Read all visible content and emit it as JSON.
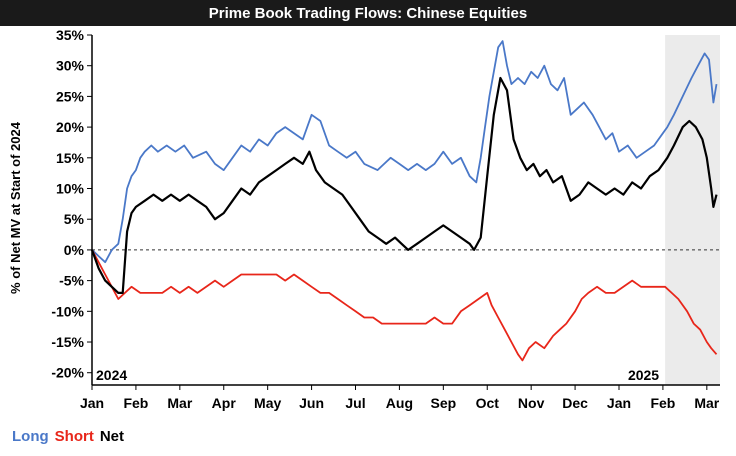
{
  "chart_data": {
    "type": "line",
    "title": "Prime Book Trading Flows: Chinese Equities",
    "ylabel": "% of Net MV at Start of 2024",
    "xlabel": "",
    "ylim": [
      -22,
      35
    ],
    "yticks": [
      -20,
      -15,
      -10,
      -5,
      0,
      5,
      10,
      15,
      20,
      25,
      30,
      35
    ],
    "ytick_labels": [
      "-20%",
      "-15%",
      "-10%",
      "-5%",
      "0%",
      "5%",
      "10%",
      "15%",
      "20%",
      "25%",
      "30%",
      "35%"
    ],
    "x_unit": "months since Jan 2024",
    "xlim": [
      0,
      14.3
    ],
    "xticks": [
      0,
      1,
      2,
      3,
      4,
      5,
      6,
      7,
      8,
      9,
      10,
      11,
      12,
      13,
      14
    ],
    "xtick_labels": [
      "Jan",
      "Feb",
      "Mar",
      "Apr",
      "May",
      "Jun",
      "Jul",
      "Aug",
      "Sep",
      "Oct",
      "Nov",
      "Dec",
      "Jan",
      "Feb",
      "Mar"
    ],
    "year_labels": [
      "2024",
      "2025"
    ],
    "shaded_region": [
      13.05,
      14.3
    ],
    "zero_line": "dashed",
    "legend": {
      "position": "bottom-left",
      "entries": [
        "Long",
        "Short",
        "Net"
      ]
    },
    "series": [
      {
        "name": "Long",
        "color": "#4a78c8",
        "points": [
          [
            0,
            0
          ],
          [
            0.15,
            -1
          ],
          [
            0.3,
            -2
          ],
          [
            0.45,
            0
          ],
          [
            0.6,
            1
          ],
          [
            0.7,
            5
          ],
          [
            0.8,
            10
          ],
          [
            0.9,
            12
          ],
          [
            1.0,
            13
          ],
          [
            1.1,
            15
          ],
          [
            1.2,
            16
          ],
          [
            1.35,
            17
          ],
          [
            1.5,
            16
          ],
          [
            1.7,
            17
          ],
          [
            1.9,
            16
          ],
          [
            2.1,
            17
          ],
          [
            2.3,
            15
          ],
          [
            2.6,
            16
          ],
          [
            2.8,
            14
          ],
          [
            3.0,
            13
          ],
          [
            3.2,
            15
          ],
          [
            3.4,
            17
          ],
          [
            3.6,
            16
          ],
          [
            3.8,
            18
          ],
          [
            4.0,
            17
          ],
          [
            4.2,
            19
          ],
          [
            4.4,
            20
          ],
          [
            4.6,
            19
          ],
          [
            4.8,
            18
          ],
          [
            5.0,
            22
          ],
          [
            5.2,
            21
          ],
          [
            5.4,
            17
          ],
          [
            5.6,
            16
          ],
          [
            5.8,
            15
          ],
          [
            6.0,
            16
          ],
          [
            6.2,
            14
          ],
          [
            6.5,
            13
          ],
          [
            6.8,
            15
          ],
          [
            7.0,
            14
          ],
          [
            7.2,
            13
          ],
          [
            7.4,
            14
          ],
          [
            7.6,
            13
          ],
          [
            7.8,
            14
          ],
          [
            8.0,
            16
          ],
          [
            8.2,
            14
          ],
          [
            8.4,
            15
          ],
          [
            8.6,
            12
          ],
          [
            8.75,
            11
          ],
          [
            8.85,
            15
          ],
          [
            8.95,
            20
          ],
          [
            9.05,
            25
          ],
          [
            9.15,
            29
          ],
          [
            9.25,
            33
          ],
          [
            9.35,
            34
          ],
          [
            9.45,
            30
          ],
          [
            9.55,
            27
          ],
          [
            9.7,
            28
          ],
          [
            9.85,
            27
          ],
          [
            10.0,
            29
          ],
          [
            10.15,
            28
          ],
          [
            10.3,
            30
          ],
          [
            10.45,
            27
          ],
          [
            10.6,
            26
          ],
          [
            10.75,
            28
          ],
          [
            10.9,
            22
          ],
          [
            11.05,
            23
          ],
          [
            11.2,
            24
          ],
          [
            11.4,
            22
          ],
          [
            11.55,
            20
          ],
          [
            11.7,
            18
          ],
          [
            11.85,
            19
          ],
          [
            12.0,
            16
          ],
          [
            12.2,
            17
          ],
          [
            12.4,
            15
          ],
          [
            12.6,
            16
          ],
          [
            12.8,
            17
          ],
          [
            13.0,
            19
          ],
          [
            13.1,
            20
          ],
          [
            13.25,
            22
          ],
          [
            13.45,
            25
          ],
          [
            13.65,
            28
          ],
          [
            13.8,
            30
          ],
          [
            13.95,
            32
          ],
          [
            14.05,
            31
          ],
          [
            14.15,
            24
          ],
          [
            14.22,
            27
          ]
        ]
      },
      {
        "name": "Short",
        "color": "#e8261a",
        "points": [
          [
            0,
            0
          ],
          [
            0.15,
            -2
          ],
          [
            0.3,
            -4
          ],
          [
            0.45,
            -6
          ],
          [
            0.6,
            -8
          ],
          [
            0.75,
            -7
          ],
          [
            0.9,
            -6
          ],
          [
            1.1,
            -7
          ],
          [
            1.3,
            -7
          ],
          [
            1.6,
            -7
          ],
          [
            1.8,
            -6
          ],
          [
            2.0,
            -7
          ],
          [
            2.2,
            -6
          ],
          [
            2.4,
            -7
          ],
          [
            2.6,
            -6
          ],
          [
            2.8,
            -5
          ],
          [
            3.0,
            -6
          ],
          [
            3.2,
            -5
          ],
          [
            3.4,
            -4
          ],
          [
            3.6,
            -4
          ],
          [
            3.8,
            -4
          ],
          [
            4.0,
            -4
          ],
          [
            4.2,
            -4
          ],
          [
            4.4,
            -5
          ],
          [
            4.6,
            -4
          ],
          [
            4.8,
            -5
          ],
          [
            5.0,
            -6
          ],
          [
            5.2,
            -7
          ],
          [
            5.4,
            -7
          ],
          [
            5.6,
            -8
          ],
          [
            5.8,
            -9
          ],
          [
            6.0,
            -10
          ],
          [
            6.2,
            -11
          ],
          [
            6.4,
            -11
          ],
          [
            6.6,
            -12
          ],
          [
            6.8,
            -12
          ],
          [
            7.0,
            -12
          ],
          [
            7.2,
            -12
          ],
          [
            7.4,
            -12
          ],
          [
            7.6,
            -12
          ],
          [
            7.8,
            -11
          ],
          [
            8.0,
            -12
          ],
          [
            8.2,
            -12
          ],
          [
            8.4,
            -10
          ],
          [
            8.6,
            -9
          ],
          [
            8.8,
            -8
          ],
          [
            9.0,
            -7
          ],
          [
            9.1,
            -9
          ],
          [
            9.25,
            -11
          ],
          [
            9.4,
            -13
          ],
          [
            9.55,
            -15
          ],
          [
            9.7,
            -17
          ],
          [
            9.8,
            -18
          ],
          [
            9.95,
            -16
          ],
          [
            10.1,
            -15
          ],
          [
            10.3,
            -16
          ],
          [
            10.5,
            -14
          ],
          [
            10.65,
            -13
          ],
          [
            10.8,
            -12
          ],
          [
            11.0,
            -10
          ],
          [
            11.15,
            -8
          ],
          [
            11.3,
            -7
          ],
          [
            11.5,
            -6
          ],
          [
            11.7,
            -7
          ],
          [
            11.9,
            -7
          ],
          [
            12.1,
            -6
          ],
          [
            12.3,
            -5
          ],
          [
            12.5,
            -6
          ],
          [
            12.7,
            -6
          ],
          [
            12.9,
            -6
          ],
          [
            13.05,
            -6
          ],
          [
            13.2,
            -7
          ],
          [
            13.35,
            -8
          ],
          [
            13.55,
            -10
          ],
          [
            13.7,
            -12
          ],
          [
            13.85,
            -13
          ],
          [
            14.0,
            -15
          ],
          [
            14.1,
            -16
          ],
          [
            14.22,
            -17
          ]
        ]
      },
      {
        "name": "Net",
        "color": "#000000",
        "points": [
          [
            0,
            0
          ],
          [
            0.15,
            -3
          ],
          [
            0.3,
            -5
          ],
          [
            0.45,
            -6
          ],
          [
            0.6,
            -7
          ],
          [
            0.7,
            -7
          ],
          [
            0.8,
            3
          ],
          [
            0.9,
            6
          ],
          [
            1.0,
            7
          ],
          [
            1.2,
            8
          ],
          [
            1.4,
            9
          ],
          [
            1.6,
            8
          ],
          [
            1.8,
            9
          ],
          [
            2.0,
            8
          ],
          [
            2.2,
            9
          ],
          [
            2.4,
            8
          ],
          [
            2.6,
            7
          ],
          [
            2.8,
            5
          ],
          [
            3.0,
            6
          ],
          [
            3.2,
            8
          ],
          [
            3.4,
            10
          ],
          [
            3.6,
            9
          ],
          [
            3.8,
            11
          ],
          [
            4.0,
            12
          ],
          [
            4.2,
            13
          ],
          [
            4.4,
            14
          ],
          [
            4.6,
            15
          ],
          [
            4.8,
            14
          ],
          [
            4.95,
            16
          ],
          [
            5.1,
            13
          ],
          [
            5.3,
            11
          ],
          [
            5.5,
            10
          ],
          [
            5.7,
            9
          ],
          [
            5.9,
            7
          ],
          [
            6.1,
            5
          ],
          [
            6.3,
            3
          ],
          [
            6.5,
            2
          ],
          [
            6.7,
            1
          ],
          [
            6.9,
            2
          ],
          [
            7.05,
            1
          ],
          [
            7.2,
            0
          ],
          [
            7.4,
            1
          ],
          [
            7.6,
            2
          ],
          [
            7.8,
            3
          ],
          [
            8.0,
            4
          ],
          [
            8.2,
            3
          ],
          [
            8.4,
            2
          ],
          [
            8.6,
            1
          ],
          [
            8.7,
            0
          ],
          [
            8.85,
            2
          ],
          [
            9.0,
            12
          ],
          [
            9.15,
            22
          ],
          [
            9.3,
            28
          ],
          [
            9.45,
            26
          ],
          [
            9.6,
            18
          ],
          [
            9.75,
            15
          ],
          [
            9.9,
            13
          ],
          [
            10.05,
            14
          ],
          [
            10.2,
            12
          ],
          [
            10.35,
            13
          ],
          [
            10.5,
            11
          ],
          [
            10.7,
            12
          ],
          [
            10.9,
            8
          ],
          [
            11.1,
            9
          ],
          [
            11.3,
            11
          ],
          [
            11.5,
            10
          ],
          [
            11.7,
            9
          ],
          [
            11.9,
            10
          ],
          [
            12.1,
            9
          ],
          [
            12.3,
            11
          ],
          [
            12.5,
            10
          ],
          [
            12.7,
            12
          ],
          [
            12.9,
            13
          ],
          [
            13.1,
            15
          ],
          [
            13.25,
            17
          ],
          [
            13.45,
            20
          ],
          [
            13.6,
            21
          ],
          [
            13.75,
            20
          ],
          [
            13.9,
            18
          ],
          [
            14.0,
            15
          ],
          [
            14.1,
            10
          ],
          [
            14.15,
            7
          ],
          [
            14.22,
            9
          ]
        ]
      }
    ]
  }
}
